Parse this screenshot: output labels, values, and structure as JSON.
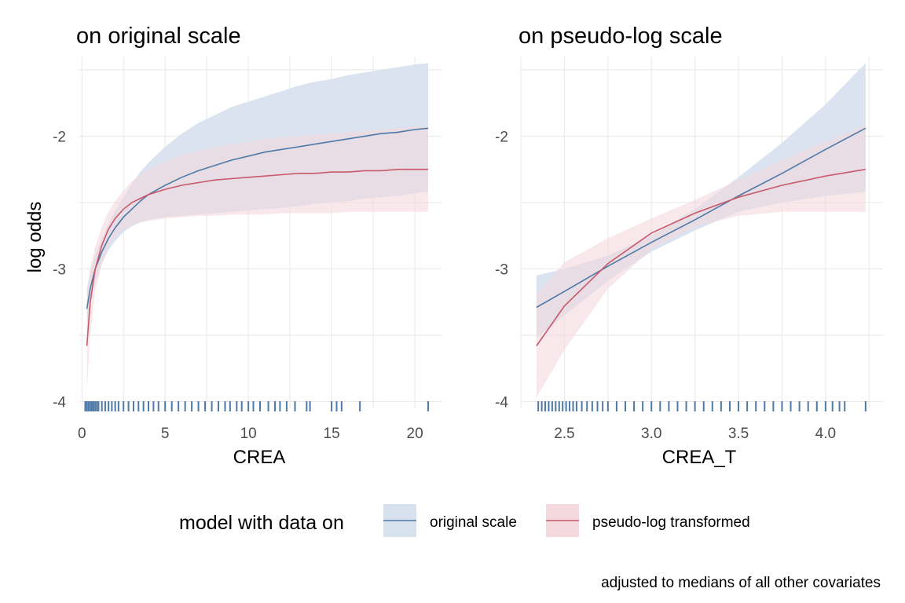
{
  "legend": {
    "title": "model with data on",
    "position": "bottom",
    "entries": [
      {
        "label": "original scale",
        "line_color": "#4E79A7",
        "fill_color": "#D8E2EE"
      },
      {
        "label": "pseudo-log transformed",
        "line_color": "#C8596A",
        "fill_color": "#F4D9DE"
      }
    ]
  },
  "caption": "adjusted to medians of all other covariates",
  "chart_data": [
    {
      "type": "line",
      "title": "on original scale",
      "xlabel": "CREA",
      "ylabel": "log odds",
      "xlim": [
        -0.2,
        21.6
      ],
      "ylim": [
        -4.05,
        -1.4
      ],
      "grid": true,
      "x_ticks": [
        0,
        5,
        10,
        15,
        20
      ],
      "x_tick_labels": [
        "0",
        "5",
        "10",
        "15",
        "20"
      ],
      "y_ticks": [
        -4,
        -3,
        -2
      ],
      "y_tick_labels": [
        "-4",
        "-3",
        "-2"
      ],
      "series": [
        {
          "name": "original scale",
          "color": "#4E79A7",
          "x": [
            0.3,
            0.5,
            0.8,
            1.2,
            1.6,
            2.0,
            2.5,
            3.0,
            3.5,
            4.0,
            5.0,
            6.0,
            7.0,
            8.0,
            9.0,
            10.0,
            11.0,
            12.0,
            13.0,
            14.0,
            15.0,
            16.0,
            17.0,
            18.0,
            19.0,
            20.0,
            20.8
          ],
          "values": [
            -3.3,
            -3.15,
            -3.0,
            -2.87,
            -2.77,
            -2.69,
            -2.61,
            -2.55,
            -2.49,
            -2.44,
            -2.37,
            -2.31,
            -2.26,
            -2.22,
            -2.18,
            -2.15,
            -2.12,
            -2.1,
            -2.08,
            -2.06,
            -2.04,
            -2.02,
            -2.0,
            -1.98,
            -1.97,
            -1.95,
            -1.94
          ],
          "lower": [
            -3.45,
            -3.27,
            -3.1,
            -2.96,
            -2.86,
            -2.79,
            -2.72,
            -2.68,
            -2.65,
            -2.63,
            -2.61,
            -2.6,
            -2.59,
            -2.58,
            -2.57,
            -2.56,
            -2.55,
            -2.54,
            -2.53,
            -2.51,
            -2.5,
            -2.49,
            -2.47,
            -2.46,
            -2.45,
            -2.43,
            -2.42
          ],
          "upper": [
            -3.15,
            -3.02,
            -2.89,
            -2.77,
            -2.66,
            -2.56,
            -2.46,
            -2.36,
            -2.27,
            -2.2,
            -2.08,
            -1.98,
            -1.9,
            -1.84,
            -1.78,
            -1.74,
            -1.7,
            -1.66,
            -1.62,
            -1.59,
            -1.57,
            -1.54,
            -1.52,
            -1.5,
            -1.48,
            -1.46,
            -1.45
          ]
        },
        {
          "name": "pseudo-log transformed",
          "color": "#C8596A",
          "x": [
            0.3,
            0.5,
            0.8,
            1.2,
            1.6,
            2.0,
            2.5,
            3.0,
            3.5,
            4.0,
            5.0,
            6.0,
            7.0,
            8.0,
            9.0,
            10.0,
            11.0,
            12.0,
            13.0,
            14.0,
            15.0,
            16.0,
            17.0,
            18.0,
            19.0,
            20.0,
            20.8
          ],
          "values": [
            -3.58,
            -3.25,
            -3.0,
            -2.82,
            -2.7,
            -2.62,
            -2.55,
            -2.5,
            -2.47,
            -2.44,
            -2.4,
            -2.37,
            -2.35,
            -2.33,
            -2.32,
            -2.31,
            -2.3,
            -2.29,
            -2.28,
            -2.28,
            -2.27,
            -2.27,
            -2.26,
            -2.26,
            -2.25,
            -2.25,
            -2.25
          ],
          "lower": [
            -3.93,
            -3.5,
            -3.17,
            -2.96,
            -2.83,
            -2.75,
            -2.7,
            -2.67,
            -2.65,
            -2.64,
            -2.62,
            -2.61,
            -2.6,
            -2.6,
            -2.59,
            -2.59,
            -2.59,
            -2.58,
            -2.58,
            -2.58,
            -2.58,
            -2.57,
            -2.57,
            -2.57,
            -2.57,
            -2.57,
            -2.57
          ],
          "upper": [
            -3.23,
            -3.0,
            -2.83,
            -2.68,
            -2.57,
            -2.49,
            -2.41,
            -2.34,
            -2.29,
            -2.25,
            -2.19,
            -2.14,
            -2.11,
            -2.08,
            -2.06,
            -2.04,
            -2.02,
            -2.01,
            -2.0,
            -1.99,
            -1.98,
            -1.97,
            -1.96,
            -1.95,
            -1.94,
            -1.93,
            -1.93
          ]
        }
      ],
      "rug_x": [
        0.2,
        0.3,
        0.4,
        0.5,
        0.6,
        0.7,
        0.8,
        0.9,
        1.0,
        1.2,
        1.4,
        1.6,
        1.8,
        2.0,
        2.2,
        2.5,
        2.8,
        3.1,
        3.4,
        3.7,
        4.0,
        4.3,
        4.6,
        5.0,
        5.4,
        5.8,
        6.2,
        6.6,
        7.0,
        7.4,
        7.8,
        8.2,
        8.6,
        8.9,
        9.3,
        9.6,
        10.0,
        10.3,
        10.7,
        11.2,
        11.6,
        11.9,
        12.3,
        12.8,
        13.5,
        13.7,
        15.0,
        15.3,
        15.6,
        16.7,
        20.8
      ]
    },
    {
      "type": "line",
      "title": "on pseudo-log scale",
      "xlabel": "CREA_T",
      "ylabel": "",
      "xlim": [
        2.25,
        4.33
      ],
      "ylim": [
        -4.05,
        -1.4
      ],
      "grid": true,
      "x_ticks": [
        2.5,
        3.0,
        3.5,
        4.0
      ],
      "x_tick_labels": [
        "2.5",
        "3.0",
        "3.5",
        "4.0"
      ],
      "y_ticks": [
        -4,
        -3,
        -2
      ],
      "y_tick_labels": [
        "-4",
        "-3",
        "-2"
      ],
      "series": [
        {
          "name": "original scale",
          "color": "#4E79A7",
          "x": [
            2.34,
            2.5,
            2.75,
            3.0,
            3.25,
            3.5,
            3.75,
            4.0,
            4.23
          ],
          "values": [
            -3.29,
            -3.17,
            -2.98,
            -2.8,
            -2.63,
            -2.45,
            -2.28,
            -2.1,
            -1.94
          ],
          "lower": [
            -3.52,
            -3.35,
            -3.09,
            -2.87,
            -2.71,
            -2.57,
            -2.5,
            -2.45,
            -2.42
          ],
          "upper": [
            -3.05,
            -3.0,
            -2.9,
            -2.75,
            -2.55,
            -2.31,
            -2.05,
            -1.76,
            -1.45
          ]
        },
        {
          "name": "pseudo-log transformed",
          "color": "#C8596A",
          "x": [
            2.34,
            2.5,
            2.75,
            3.0,
            3.25,
            3.5,
            3.75,
            4.0,
            4.23
          ],
          "values": [
            -3.58,
            -3.28,
            -2.96,
            -2.73,
            -2.58,
            -2.46,
            -2.37,
            -2.3,
            -2.25
          ],
          "lower": [
            -3.97,
            -3.61,
            -3.15,
            -2.85,
            -2.68,
            -2.6,
            -2.57,
            -2.57,
            -2.57
          ],
          "upper": [
            -3.2,
            -2.95,
            -2.77,
            -2.62,
            -2.48,
            -2.33,
            -2.18,
            -2.04,
            -1.92
          ]
        }
      ],
      "rug_x": [
        2.35,
        2.37,
        2.39,
        2.41,
        2.43,
        2.45,
        2.47,
        2.49,
        2.51,
        2.53,
        2.55,
        2.57,
        2.6,
        2.63,
        2.66,
        2.69,
        2.72,
        2.75,
        2.8,
        2.85,
        2.9,
        2.95,
        3.0,
        3.05,
        3.1,
        3.15,
        3.2,
        3.25,
        3.3,
        3.35,
        3.4,
        3.45,
        3.5,
        3.55,
        3.6,
        3.65,
        3.7,
        3.75,
        3.8,
        3.85,
        3.9,
        3.95,
        4.0,
        4.04,
        4.08,
        4.11,
        4.23
      ]
    }
  ]
}
